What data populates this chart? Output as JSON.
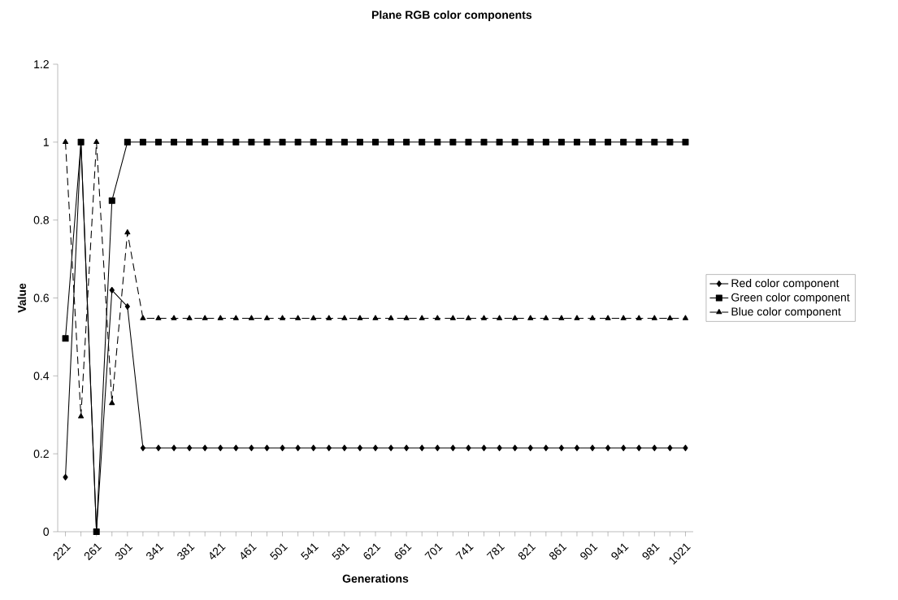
{
  "chart_data": {
    "type": "line",
    "title": "Plane RGB color components",
    "xlabel": "Generations",
    "ylabel": "Value",
    "categories": [
      "221",
      null,
      "261",
      null,
      "301",
      null,
      "341",
      null,
      "381",
      null,
      "421",
      null,
      "461",
      null,
      "501",
      null,
      "541",
      null,
      "581",
      null,
      "621",
      null,
      "661",
      null,
      "701",
      null,
      "741",
      null,
      "781",
      null,
      "821",
      null,
      "861",
      null,
      "901",
      null,
      "941",
      null,
      "981",
      null,
      "1021"
    ],
    "ylim": [
      0,
      1.2
    ],
    "yticks": [
      0,
      0.2,
      0.4,
      0.6,
      0.8,
      1,
      1.2
    ],
    "grid": false,
    "legend": "right",
    "series": [
      {
        "name": "Red color component",
        "color": "#000000",
        "marker": "diamond",
        "line_style": "solid",
        "values": [
          0.14,
          1,
          0,
          0.62,
          0.578,
          0.215,
          0.215,
          0.215,
          0.215,
          0.215,
          0.215,
          0.215,
          0.215,
          0.215,
          0.215,
          0.215,
          0.215,
          0.215,
          0.215,
          0.215,
          0.215,
          0.215,
          0.215,
          0.215,
          0.215,
          0.215,
          0.215,
          0.215,
          0.215,
          0.215,
          0.215,
          0.215,
          0.215,
          0.215,
          0.215,
          0.215,
          0.215,
          0.215,
          0.215,
          0.215,
          0.215
        ]
      },
      {
        "name": "Green color component",
        "color": "#000000",
        "marker": "square",
        "line_style": "solid",
        "values": [
          0.496,
          1,
          0,
          0.85,
          1,
          1,
          1,
          1,
          1,
          1,
          1,
          1,
          1,
          1,
          1,
          1,
          1,
          1,
          1,
          1,
          1,
          1,
          1,
          1,
          1,
          1,
          1,
          1,
          1,
          1,
          1,
          1,
          1,
          1,
          1,
          1,
          1,
          1,
          1,
          1,
          1
        ]
      },
      {
        "name": "Blue color component",
        "color": "#000000",
        "marker": "triangle",
        "line_style": "dashed",
        "values": [
          1,
          0.296,
          1,
          0.33,
          0.768,
          0.548,
          0.548,
          0.548,
          0.548,
          0.548,
          0.548,
          0.548,
          0.548,
          0.548,
          0.548,
          0.548,
          0.548,
          0.548,
          0.548,
          0.548,
          0.548,
          0.548,
          0.548,
          0.548,
          0.548,
          0.548,
          0.548,
          0.548,
          0.548,
          0.548,
          0.548,
          0.548,
          0.548,
          0.548,
          0.548,
          0.548,
          0.548,
          0.548,
          0.548,
          0.548,
          0.548
        ]
      }
    ]
  }
}
